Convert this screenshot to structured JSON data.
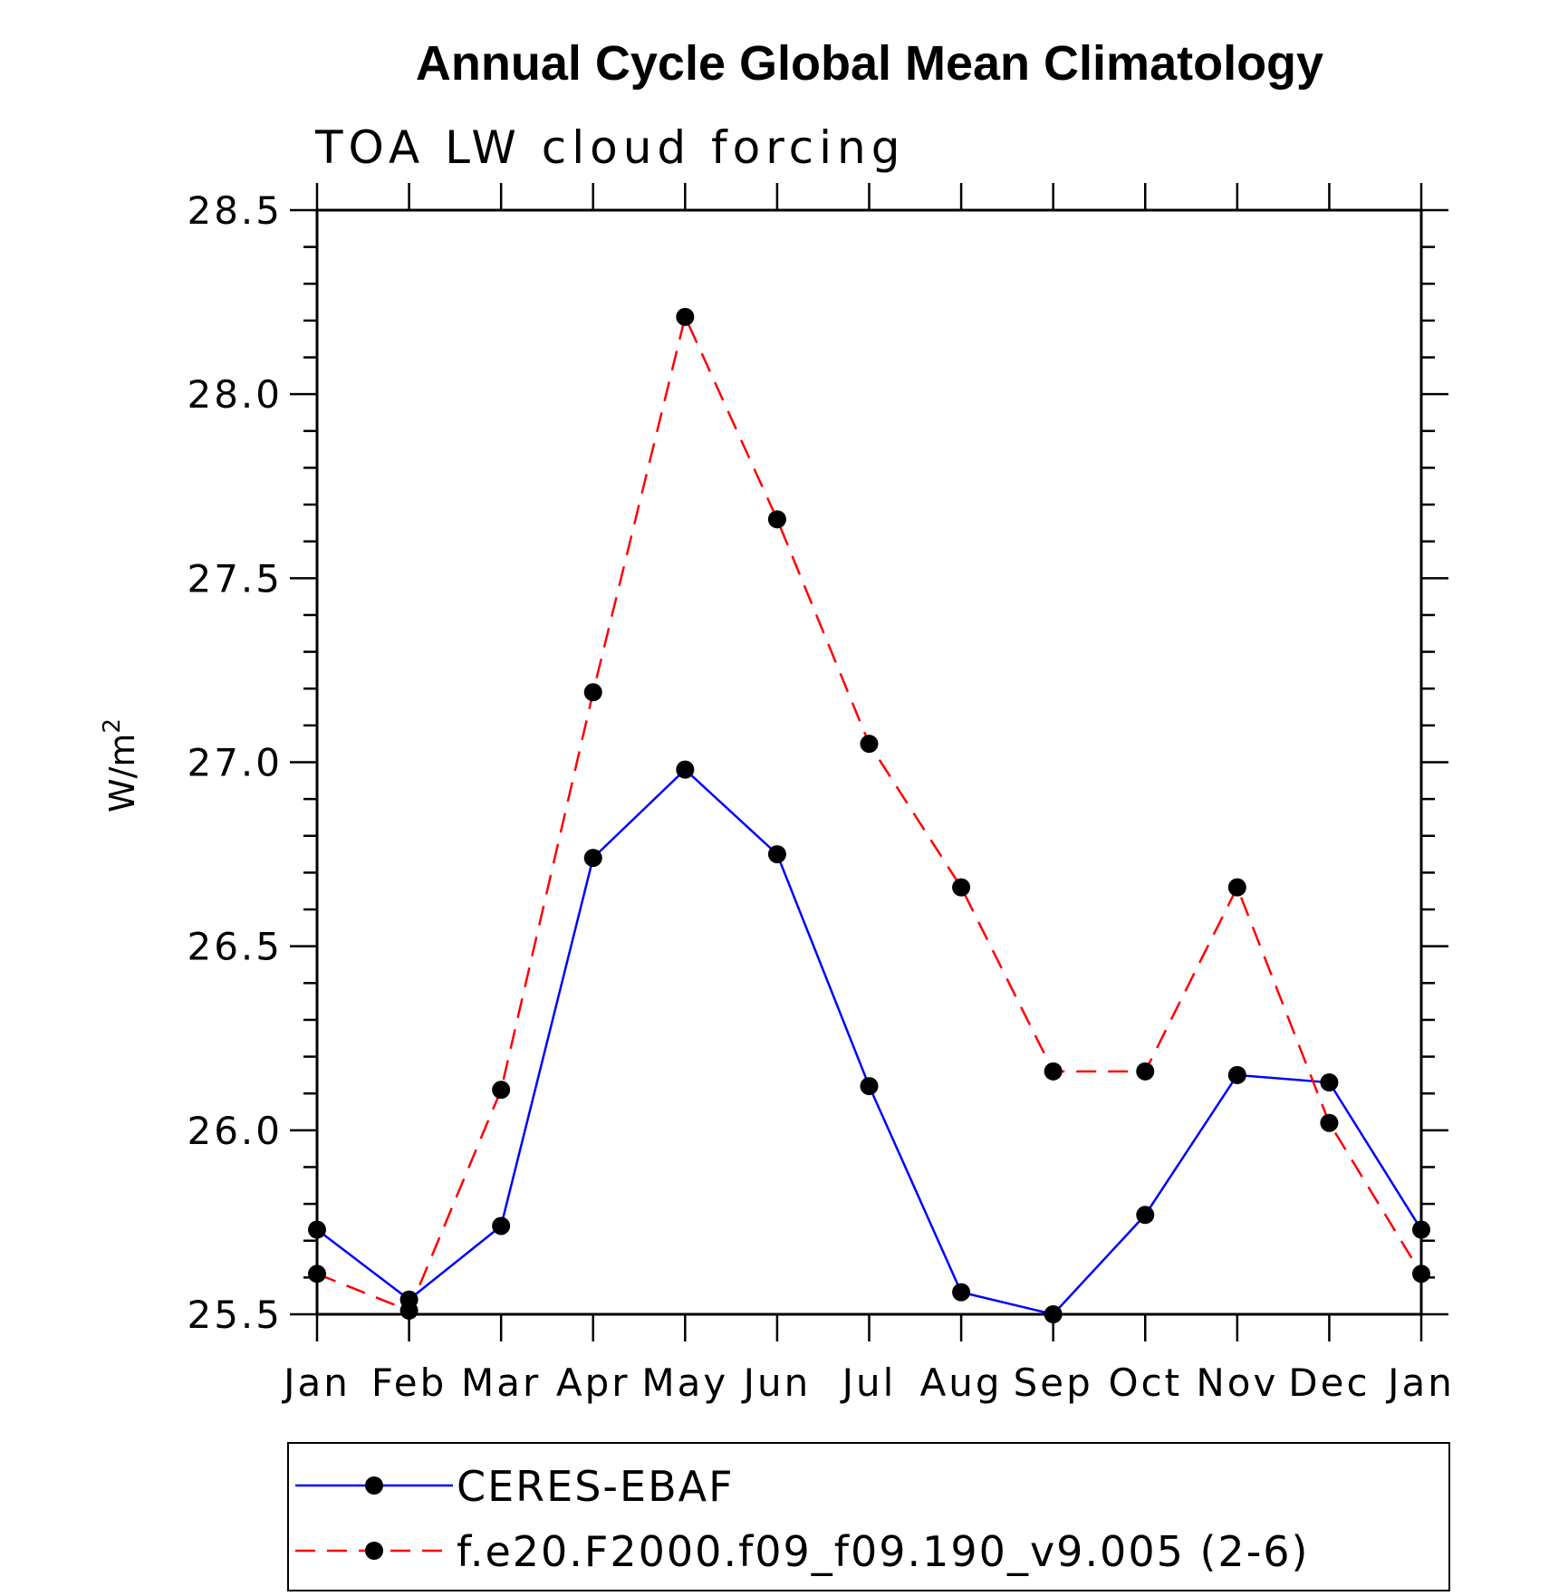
{
  "chart_data": {
    "type": "line",
    "title": "Annual Cycle Global Mean Climatology",
    "subtitle": "TOA LW cloud forcing",
    "ylabel": "W/m",
    "ylabel_superscript": "2",
    "xlabel": "",
    "categories": [
      "Jan",
      "Feb",
      "Mar",
      "Apr",
      "May",
      "Jun",
      "Jul",
      "Aug",
      "Sep",
      "Oct",
      "Nov",
      "Dec",
      "Jan"
    ],
    "ylim": [
      25.5,
      28.5
    ],
    "yticks": [
      "25.5",
      "26.0",
      "26.5",
      "27.0",
      "27.5",
      "28.0",
      "28.5"
    ],
    "grid": false,
    "legend_position": "bottom",
    "series": [
      {
        "name": "CERES-EBAF",
        "color": "#0000ff",
        "dashed": false,
        "values": [
          25.73,
          25.54,
          25.74,
          26.74,
          26.98,
          26.75,
          26.12,
          25.56,
          25.5,
          25.77,
          26.15,
          26.13,
          25.73
        ]
      },
      {
        "name": "f.e20.F2000.f09_f09.190_v9.005 (2-6)",
        "color": "#ff0000",
        "dashed": true,
        "values": [
          25.61,
          25.51,
          26.11,
          27.19,
          28.21,
          27.66,
          27.05,
          26.66,
          26.16,
          26.16,
          26.66,
          26.02,
          25.61
        ]
      }
    ]
  }
}
